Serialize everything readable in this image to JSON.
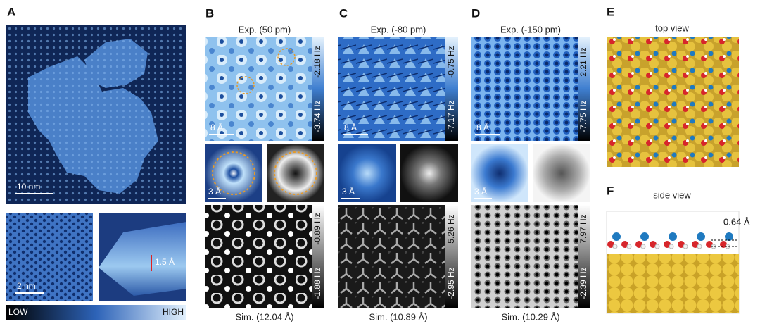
{
  "panel_a": {
    "label": "A",
    "scale_bar_main": "10 nm",
    "scale_bar_zoom": "2 nm",
    "height_label": "1.5 Å",
    "colorbar_low": "LOW",
    "colorbar_high": "HIGH"
  },
  "panel_b": {
    "label": "B",
    "exp_title": "Exp.  (50 pm)",
    "exp_max": "-2.18 Hz",
    "exp_min": "-3.74 Hz",
    "exp_scale": "8 Å",
    "zoom_scale": "3 Å",
    "sim_max": "-0.89 Hz",
    "sim_min": "-1.88 Hz",
    "sim_title": "Sim.  (12.04 Å)"
  },
  "panel_c": {
    "label": "C",
    "exp_title": "Exp. (-80 pm)",
    "exp_max": "-0.75 Hz",
    "exp_min": "-7.17 Hz",
    "exp_scale": "8 Å",
    "zoom_scale": "3 Å",
    "sim_max": "5.26 Hz",
    "sim_min": "-2.95 Hz",
    "sim_title": "Sim.  (10.89 Å)"
  },
  "panel_d": {
    "label": "D",
    "exp_title": "Exp. (-150 pm)",
    "exp_max": "2.21 Hz",
    "exp_min": "-7.75 Hz",
    "exp_scale": "8 Å",
    "zoom_scale": "3 Å",
    "sim_max": "7.97 Hz",
    "sim_min": "-2.39 Hz",
    "sim_title": "Sim.  (10.29 Å)"
  },
  "panel_e": {
    "label": "E",
    "title": "top view"
  },
  "panel_f": {
    "label": "F",
    "title": "side view",
    "height_label": "0.64 Å"
  }
}
